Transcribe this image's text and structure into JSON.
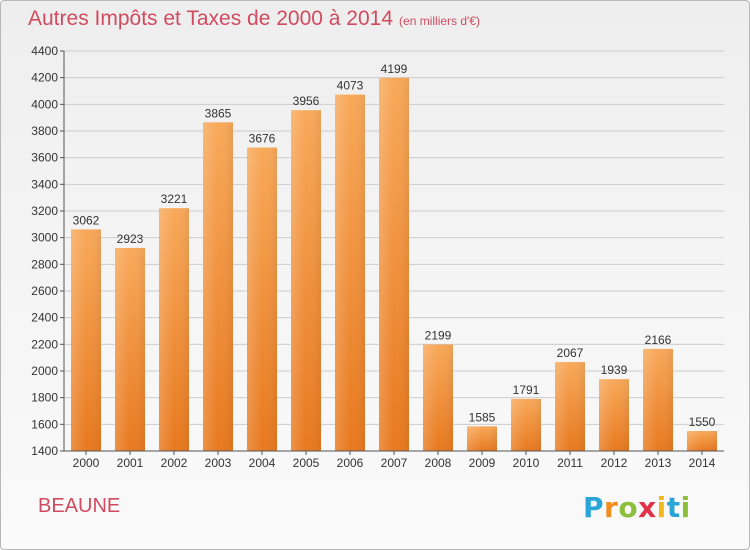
{
  "header": {
    "title": "Autres Impôts et Taxes de 2000 à 2014",
    "subtitle": "(en milliers d'€)"
  },
  "footer": {
    "city": "BEAUNE",
    "logo_letters": [
      "P",
      "r",
      "o",
      "x",
      "i",
      "t",
      "i"
    ],
    "logo_colors": [
      "#2aa5d8",
      "#f28c1e",
      "#8bbf3c",
      "#e0334a",
      "#f4b81c",
      "#2aa5d8",
      "#8bbf3c"
    ]
  },
  "colors": {
    "bar_top": "#f8a95a",
    "bar_bottom": "#e8791f",
    "grid": "#cccccc",
    "axis": "#555555",
    "accent": "#d04b5f"
  },
  "chart_data": {
    "type": "bar",
    "categories": [
      "2000",
      "2001",
      "2002",
      "2003",
      "2004",
      "2005",
      "2006",
      "2007",
      "2008",
      "2009",
      "2010",
      "2011",
      "2012",
      "2013",
      "2014"
    ],
    "values": [
      3062,
      2923,
      3221,
      3865,
      3676,
      3956,
      4073,
      4199,
      2199,
      1585,
      1791,
      2067,
      1939,
      2166,
      1550
    ],
    "title": "Autres Impôts et Taxes de 2000 à 2014",
    "ylim": [
      1400,
      4400
    ],
    "yticks": [
      1400,
      1600,
      1800,
      2000,
      2200,
      2400,
      2600,
      2800,
      3000,
      3200,
      3400,
      3600,
      3800,
      4000,
      4200,
      4400
    ],
    "grid": true,
    "legend": "none"
  }
}
